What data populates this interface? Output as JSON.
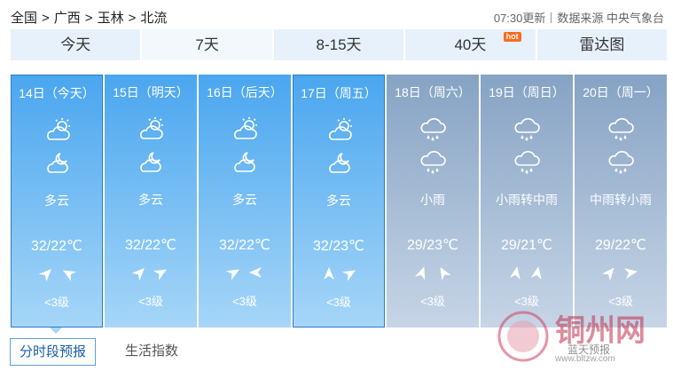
{
  "breadcrumb": {
    "items": [
      "全国",
      "广西",
      "玉林",
      "北流"
    ],
    "separator": ">"
  },
  "update": "07:30更新",
  "source": "数据来源 中央气象台",
  "tabs": [
    "今天",
    "7天",
    "8-15天",
    "40天",
    "雷达图"
  ],
  "hot": "hot",
  "days": [
    {
      "date": "14日（今天）",
      "weather": "多云",
      "temp": "32/22℃",
      "wind": "<3级"
    },
    {
      "date": "15日（明天）",
      "weather": "多云",
      "temp": "32/22℃",
      "wind": "<3级"
    },
    {
      "date": "16日（后天）",
      "weather": "多云",
      "temp": "32/22℃",
      "wind": "<3级"
    },
    {
      "date": "17日（周五）",
      "weather": "多云",
      "temp": "32/23℃",
      "wind": "<3级"
    },
    {
      "date": "18日（周六）",
      "weather": "小雨",
      "temp": "29/23℃",
      "wind": "<3级"
    },
    {
      "date": "19日（周日）",
      "weather": "小雨转中雨",
      "temp": "29/21℃",
      "wind": "<3级"
    },
    {
      "date": "20日（周一）",
      "weather": "中雨转小雨",
      "temp": "29/22℃",
      "wind": "<3级"
    }
  ],
  "bottom_tabs": [
    "分时段预报",
    "生活指数"
  ],
  "watermark": {
    "name": "铜州网",
    "sub": "蓝天预报",
    "url": "www.bltzw.com"
  }
}
